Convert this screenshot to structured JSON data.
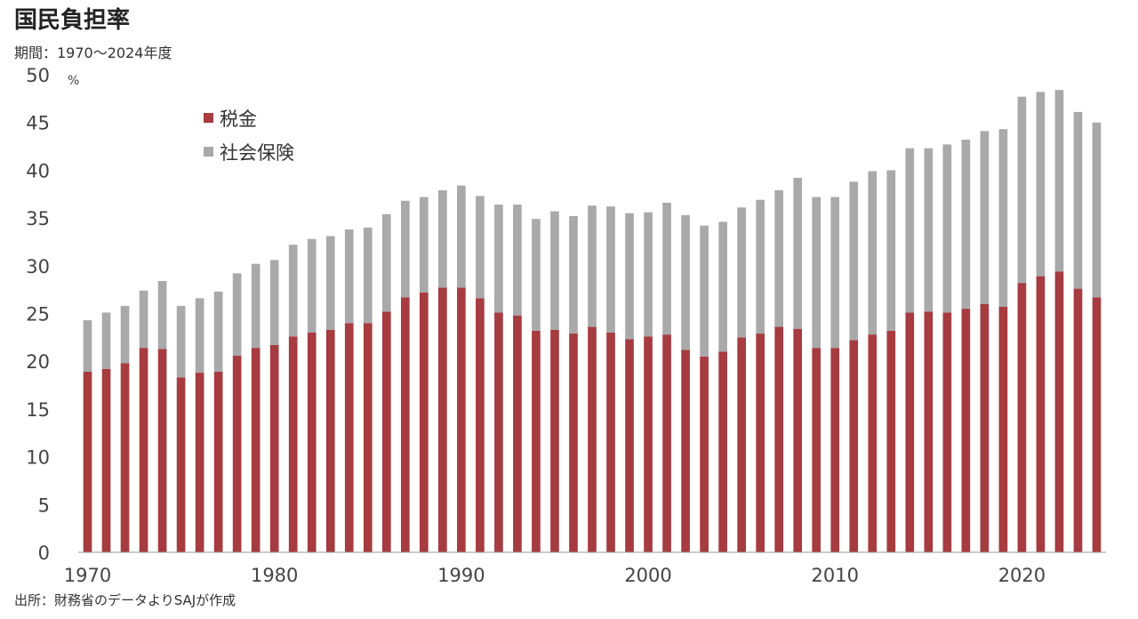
{
  "title": "国民負担率",
  "subtitle": "期間：1970～2024年度",
  "source": "出所：財務省のデータよりSAJが作成",
  "colors": {
    "tax": "#A63B40",
    "social_insurance": "#A9A9A9"
  },
  "chart_data": {
    "type": "bar",
    "stacked": true,
    "x": [
      1970,
      1971,
      1972,
      1973,
      1974,
      1975,
      1976,
      1977,
      1978,
      1979,
      1980,
      1981,
      1982,
      1983,
      1984,
      1985,
      1986,
      1987,
      1988,
      1989,
      1990,
      1991,
      1992,
      1993,
      1994,
      1995,
      1996,
      1997,
      1998,
      1999,
      2000,
      2001,
      2002,
      2003,
      2004,
      2005,
      2006,
      2007,
      2008,
      2009,
      2010,
      2011,
      2012,
      2013,
      2014,
      2015,
      2016,
      2017,
      2018,
      2019,
      2020,
      2021,
      2022,
      2023,
      2024
    ],
    "x_tick_labels": [
      "1970",
      "1980",
      "1990",
      "2000",
      "2010",
      "2020"
    ],
    "series": [
      {
        "name": "税金",
        "values": [
          18.9,
          19.2,
          19.8,
          21.4,
          21.3,
          18.3,
          18.8,
          18.9,
          20.6,
          21.4,
          21.7,
          22.6,
          23.0,
          23.3,
          24.0,
          24.0,
          25.2,
          26.7,
          27.2,
          27.7,
          27.7,
          26.6,
          25.1,
          24.8,
          23.2,
          23.3,
          22.9,
          23.6,
          23.0,
          22.3,
          22.6,
          22.8,
          21.2,
          20.5,
          21.0,
          22.5,
          22.9,
          23.6,
          23.4,
          21.4,
          21.4,
          22.2,
          22.8,
          23.2,
          25.1,
          25.2,
          25.1,
          25.5,
          26.0,
          25.7,
          28.2,
          28.9,
          29.4,
          27.6,
          26.7
        ]
      },
      {
        "name": "社会保険",
        "values": [
          5.4,
          5.9,
          6.0,
          6.0,
          7.1,
          7.5,
          7.8,
          8.4,
          8.6,
          8.8,
          8.9,
          9.6,
          9.8,
          9.8,
          9.8,
          10.0,
          10.2,
          10.1,
          10.0,
          10.2,
          10.7,
          10.7,
          11.3,
          11.6,
          11.7,
          12.4,
          12.3,
          12.7,
          13.2,
          13.2,
          13.0,
          13.8,
          14.1,
          13.7,
          13.6,
          13.6,
          14.0,
          14.3,
          15.8,
          15.8,
          15.8,
          16.6,
          17.1,
          16.8,
          17.2,
          17.1,
          17.6,
          17.7,
          18.1,
          18.6,
          19.5,
          19.3,
          19.0,
          18.5,
          18.3
        ]
      }
    ],
    "ylim": [
      0,
      50
    ],
    "y_ticks": [
      "0",
      "5",
      "10",
      "15",
      "20",
      "25",
      "30",
      "35",
      "40",
      "45",
      "50"
    ],
    "y_unit": "%",
    "legend": {
      "placement": "top-left",
      "entries": [
        "税金",
        "社会保険"
      ]
    },
    "grid": false
  }
}
